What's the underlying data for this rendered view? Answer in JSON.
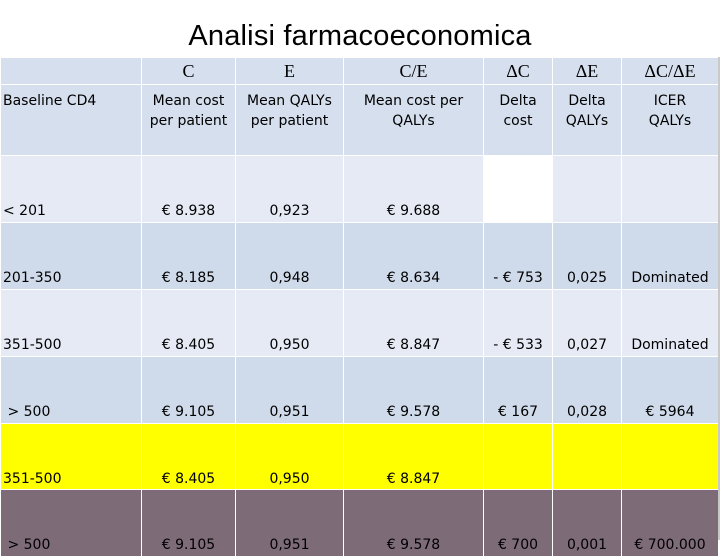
{
  "title": "Analisi farmacoeconomica",
  "header_symbols": [
    "C",
    "E",
    "C/E",
    "ΔC",
    "ΔE",
    "ΔC/ΔE"
  ],
  "header_labels": {
    "group": "Baseline CD4",
    "c": "Mean cost per patient",
    "e": "Mean QALYs per patient",
    "ce": "Mean cost per QALYs",
    "dc": "Delta cost",
    "de": "Delta QALYs",
    "dcde": "ICER QALYs"
  },
  "rows": [
    {
      "group": "< 201",
      "c": "€ 8.938",
      "e": "0,923",
      "ce": "€ 9.688",
      "dc": "",
      "de": "",
      "dcde": ""
    },
    {
      "group": "201-350",
      "c": "€ 8.185",
      "e": "0,948",
      "ce": "€ 8.634",
      "dc": "- € 753",
      "de": "0,025",
      "dcde": "Dominated"
    },
    {
      "group": "351-500",
      "c": "€ 8.405",
      "e": "0,950",
      "ce": "€  8.847",
      "dc": "- € 533",
      "de": "0,027",
      "dcde": "Dominated"
    },
    {
      "group": " > 500",
      "c": "€ 9.105",
      "e": "0,951",
      "ce": "€ 9.578",
      "dc": "€ 167",
      "de": "0,028",
      "dcde": "€  5964"
    },
    {
      "group": "351-500",
      "c": "€ 8.405",
      "e": "0,950",
      "ce": "€  8.847",
      "dc": "",
      "de": "",
      "dcde": ""
    },
    {
      "group": " > 500",
      "c": "€ 9.105",
      "e": "0,951",
      "ce": "€ 9.578",
      "dc": "€ 700",
      "de": "0,001",
      "dcde": "€  700.000"
    }
  ],
  "colors": {
    "header_bg": "#d6dfee",
    "row_light": "#e5eaf5",
    "row_dark": "#cfdaea",
    "highlight_yellow": "#ffff00",
    "highlight_gray": "#7e6b78"
  }
}
